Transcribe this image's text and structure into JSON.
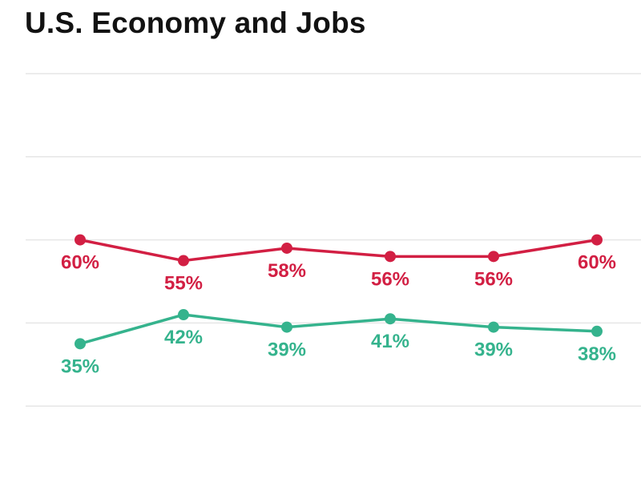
{
  "title": "U.S. Economy and Jobs",
  "chart_data": {
    "type": "line",
    "title": "U.S. Economy and Jobs",
    "x": [
      1,
      2,
      3,
      4,
      5,
      6
    ],
    "ylim": [
      0,
      100
    ],
    "gridlines": [
      20,
      40,
      60,
      80,
      100
    ],
    "grid": true,
    "legend": "none",
    "series": [
      {
        "color": "#d21f43",
        "values": [
          60,
          55,
          58,
          56,
          56,
          60
        ],
        "labels": [
          "60%",
          "55%",
          "58%",
          "56%",
          "56%",
          "60%"
        ]
      },
      {
        "color": "#35b38d",
        "values": [
          35,
          42,
          39,
          41,
          39,
          38
        ],
        "labels": [
          "35%",
          "42%",
          "39%",
          "41%",
          "39%",
          "38%"
        ]
      }
    ]
  }
}
